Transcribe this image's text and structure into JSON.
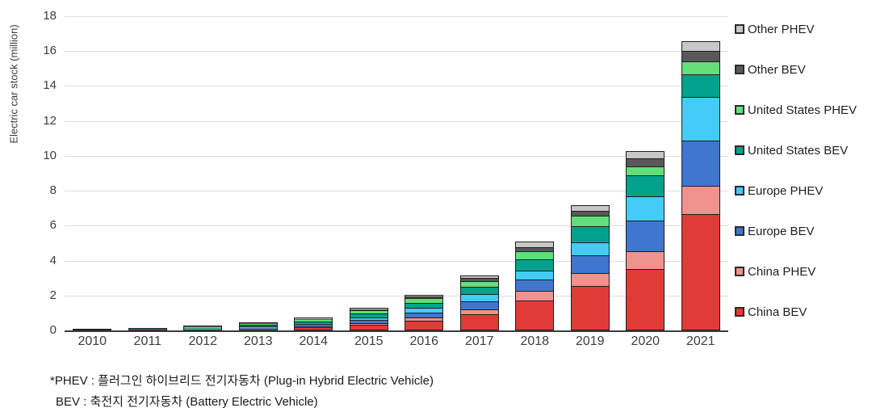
{
  "chart_data": {
    "type": "bar",
    "stacked": true,
    "title": "",
    "xlabel": "",
    "ylabel": "Electric car stock (million)",
    "ylim": [
      0,
      18
    ],
    "yticks": [
      0,
      2,
      4,
      6,
      8,
      10,
      12,
      14,
      16,
      18
    ],
    "grid": "horizontal",
    "legend_position": "right",
    "categories": [
      "2010",
      "2011",
      "2012",
      "2013",
      "2014",
      "2015",
      "2016",
      "2017",
      "2018",
      "2019",
      "2020",
      "2021"
    ],
    "series": [
      {
        "name": "China BEV",
        "color": "#e03c37",
        "values": [
          0.005,
          0.01,
          0.02,
          0.03,
          0.08,
          0.25,
          0.48,
          0.85,
          1.62,
          2.45,
          3.42,
          6.57
        ]
      },
      {
        "name": "China PHEV",
        "color": "#f0928e",
        "values": [
          0.0,
          0.002,
          0.005,
          0.01,
          0.02,
          0.08,
          0.16,
          0.28,
          0.56,
          0.74,
          1.01,
          1.62
        ]
      },
      {
        "name": "Europe BEV",
        "color": "#4076ce",
        "values": [
          0.003,
          0.01,
          0.03,
          0.05,
          0.09,
          0.16,
          0.29,
          0.45,
          0.64,
          1.02,
          1.76,
          2.6
        ]
      },
      {
        "name": "Europe PHEV",
        "color": "#45cbf7",
        "values": [
          0.0,
          0.001,
          0.01,
          0.04,
          0.07,
          0.15,
          0.26,
          0.4,
          0.51,
          0.74,
          1.39,
          2.5
        ]
      },
      {
        "name": "United States BEV",
        "color": "#00a28b",
        "values": [
          0.004,
          0.015,
          0.03,
          0.08,
          0.14,
          0.22,
          0.3,
          0.42,
          0.65,
          0.93,
          1.2,
          1.3
        ]
      },
      {
        "name": "United States PHEV",
        "color": "#62df7b",
        "values": [
          0.001,
          0.015,
          0.04,
          0.1,
          0.15,
          0.2,
          0.27,
          0.33,
          0.46,
          0.6,
          0.52,
          0.74
        ]
      },
      {
        "name": "Other BEV",
        "color": "#595959",
        "values": [
          0.005,
          0.01,
          0.03,
          0.04,
          0.06,
          0.08,
          0.1,
          0.18,
          0.23,
          0.28,
          0.46,
          0.61
        ]
      },
      {
        "name": "Other PHEV",
        "color": "#c7c7c7",
        "values": [
          0.0,
          0.002,
          0.015,
          0.03,
          0.04,
          0.06,
          0.08,
          0.13,
          0.32,
          0.32,
          0.44,
          0.55
        ]
      }
    ],
    "legend_order_top_to_bottom": [
      "Other PHEV",
      "Other BEV",
      "United States PHEV",
      "United States BEV",
      "Europe PHEV",
      "Europe BEV",
      "China PHEV",
      "China BEV"
    ]
  },
  "footnotes": {
    "line1": "*PHEV : 플러그인 하이브리드 전기자동차 (Plug-in Hybrid Electric Vehicle)",
    "line2": "BEV : 축전지 전기자동차 (Battery Electric Vehicle)"
  },
  "colors": {
    "gridline": "#dcdcdc",
    "axis_line": "#3c3c3c",
    "segment_border": "#1e1e1e",
    "tick_text": "#3d3d3d",
    "background": "#ffffff"
  }
}
